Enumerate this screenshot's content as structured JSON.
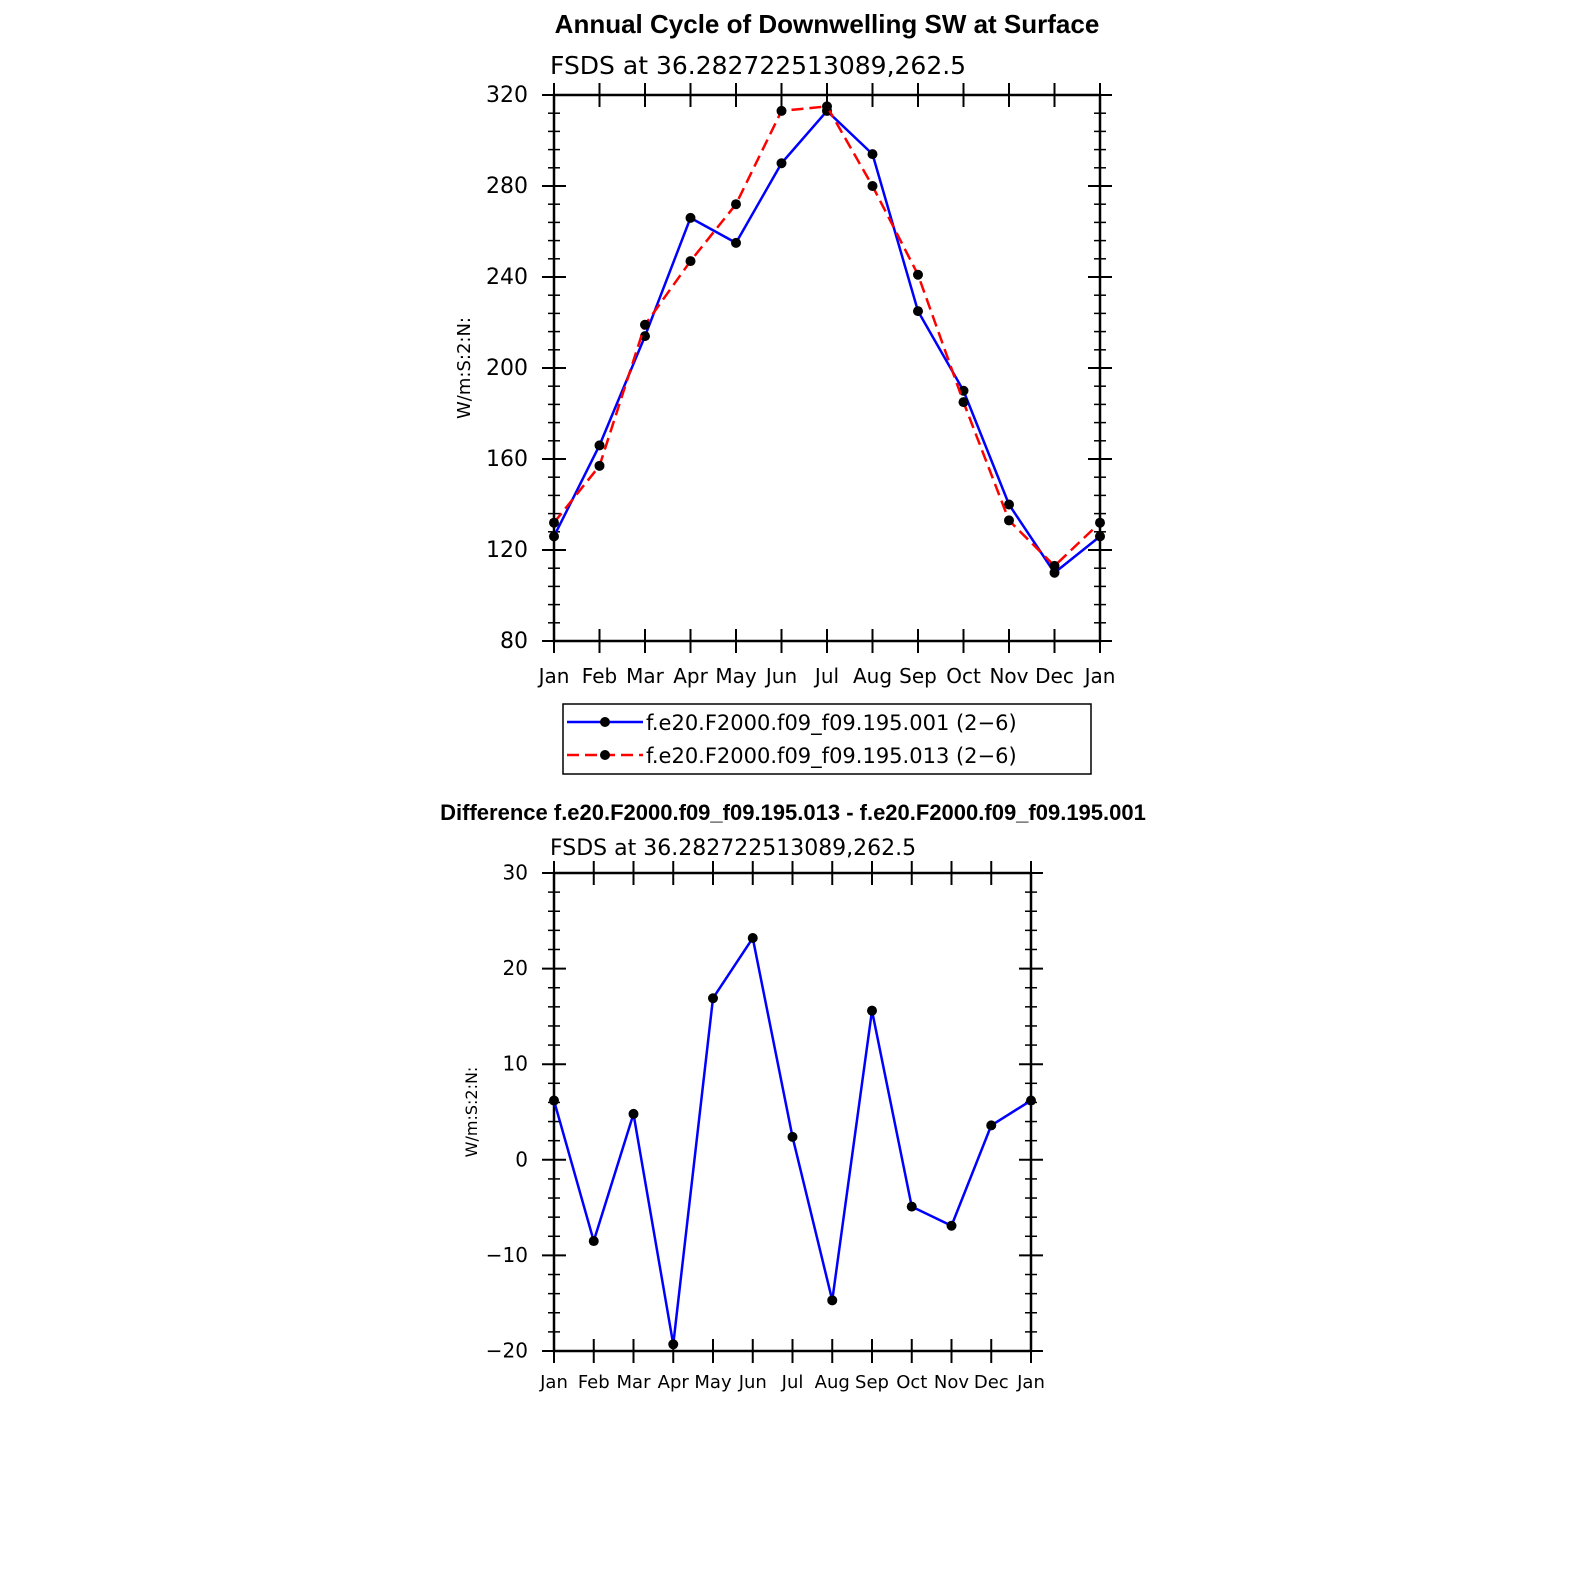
{
  "chart_data": [
    {
      "type": "line",
      "title": "Annual Cycle of Downwelling SW at Surface",
      "subtitle": "FSDS at 36.282722513089,262.5",
      "ylabel": "W/m:S:2:N:",
      "xlabel": "",
      "ylim": [
        80,
        320
      ],
      "yticks": [
        "80",
        "120",
        "160",
        "200",
        "240",
        "280",
        "320"
      ],
      "categories": [
        "Jan",
        "Feb",
        "Mar",
        "Apr",
        "May",
        "Jun",
        "Jul",
        "Aug",
        "Sep",
        "Oct",
        "Nov",
        "Dec",
        "Jan"
      ],
      "series": [
        {
          "name": "f.e20.F2000.f09_f09.195.001 (2−6)",
          "color": "#0000ff",
          "dash": "solid",
          "values": [
            126,
            166,
            214,
            266,
            255,
            290,
            313,
            294,
            225,
            190,
            140,
            110,
            126
          ]
        },
        {
          "name": "f.e20.F2000.f09_f09.195.013 (2−6)",
          "color": "#ff0000",
          "dash": "dashed",
          "values": [
            132,
            157,
            219,
            247,
            272,
            313,
            315,
            280,
            241,
            185,
            133,
            113,
            132
          ]
        }
      ]
    },
    {
      "type": "line",
      "title": "Difference f.e20.F2000.f09_f09.195.013 - f.e20.F2000.f09_f09.195.001",
      "subtitle": "FSDS at 36.282722513089,262.5",
      "ylabel": "W/m:S:2:N:",
      "xlabel": "",
      "ylim": [
        -20,
        30
      ],
      "yticks": [
        "−20",
        "−10",
        "0",
        "10",
        "20",
        "30"
      ],
      "categories": [
        "Jan",
        "Feb",
        "Mar",
        "Apr",
        "May",
        "Jun",
        "Jul",
        "Aug",
        "Sep",
        "Oct",
        "Nov",
        "Dec",
        "Jan"
      ],
      "series": [
        {
          "name": "difference",
          "color": "#0000ff",
          "dash": "solid",
          "values": [
            6.2,
            -8.5,
            4.8,
            -19.3,
            16.9,
            23.2,
            2.4,
            -14.7,
            15.6,
            -4.9,
            -6.9,
            3.6,
            6.2
          ]
        }
      ]
    }
  ]
}
